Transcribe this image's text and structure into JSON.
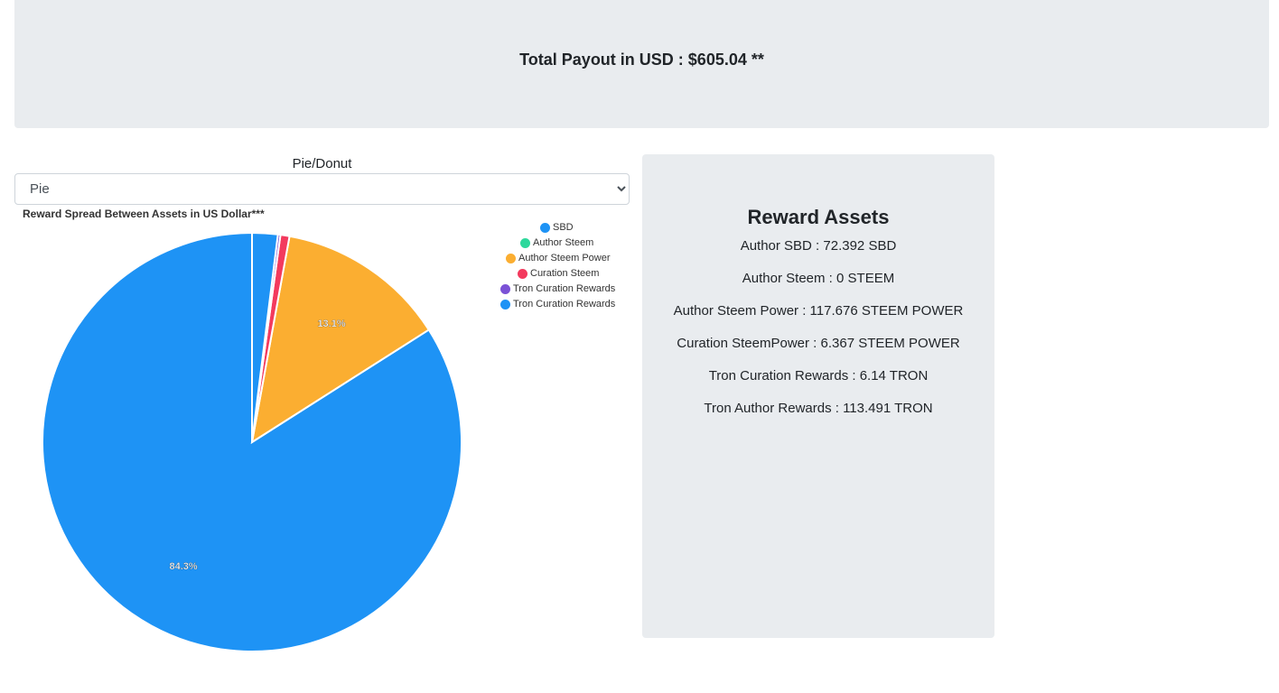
{
  "payout": {
    "text": "Total Payout in USD : $605.04 **"
  },
  "selector": {
    "label": "Pie/Donut",
    "selected": "Pie"
  },
  "chart_data": {
    "type": "pie",
    "title": "Reward Spread Between Assets in US Dollar***",
    "legend_position": "top-right",
    "slices": [
      {
        "label": "SBD",
        "value": 72.392,
        "color": "#1e93f5",
        "percent_label": "84.3%"
      },
      {
        "label": "Author Steem",
        "value": 0,
        "color": "#2ed89c",
        "percent_label": ""
      },
      {
        "label": "Author Steem Power",
        "value": 11.3,
        "color": "#fbae31",
        "percent_label": "13.1%"
      },
      {
        "label": "Curation Steem",
        "value": 0.6,
        "color": "#f33a5e",
        "percent_label": ""
      },
      {
        "label": "Tron Curation Rewards",
        "value": 0.17,
        "color": "#7b52d6",
        "percent_label": ""
      },
      {
        "label": "Tron Curation Rewards",
        "value": 1.7,
        "color": "#1e93f5",
        "percent_label": ""
      }
    ]
  },
  "assets": {
    "title": "Reward Assets",
    "lines": [
      "Author SBD : 72.392 SBD",
      "Author Steem : 0 STEEM",
      "Author Steem Power : 117.676 STEEM POWER",
      "Curation SteemPower : 6.367 STEEM POWER",
      "Tron Curation Rewards : 6.14 TRON",
      "Tron Author Rewards : 113.491 TRON"
    ]
  }
}
